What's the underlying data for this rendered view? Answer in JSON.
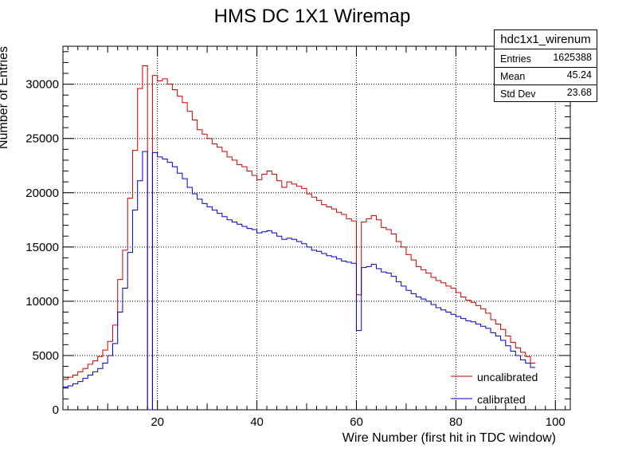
{
  "chart_data": {
    "type": "histogram",
    "title": "HMS DC 1X1 Wiremap",
    "xlabel": "Wire Number (first hit in TDC window)",
    "ylabel": "Number of Entries",
    "xlim": [
      1,
      103
    ],
    "ylim": [
      0,
      33500
    ],
    "xticks": [
      20,
      40,
      60,
      80,
      100
    ],
    "yticks": [
      0,
      5000,
      10000,
      15000,
      20000,
      25000,
      30000
    ],
    "grid": true,
    "legend_position": "bottom-right",
    "stats": {
      "name": "hdc1x1_wirenum",
      "rows": [
        {
          "label": "Entries",
          "value": "1625388"
        },
        {
          "label": "Mean",
          "value": "45.24"
        },
        {
          "label": "Std Dev",
          "value": "23.68"
        }
      ]
    },
    "bin_edges_start": 1,
    "bin_width": 1,
    "series": [
      {
        "name": "uncalibrated",
        "color": "#cc0000",
        "values": [
          2800,
          3000,
          3200,
          3500,
          3800,
          4200,
          4500,
          4900,
          5500,
          6300,
          7800,
          12000,
          14700,
          19500,
          23900,
          29600,
          31700,
          0,
          30800,
          30300,
          30500,
          30000,
          29500,
          28900,
          28300,
          27500,
          26700,
          25800,
          25400,
          25000,
          24500,
          24200,
          23800,
          23300,
          23000,
          22600,
          22400,
          22000,
          21600,
          21200,
          21700,
          22000,
          21700,
          21100,
          20500,
          21000,
          20800,
          20600,
          20400,
          19900,
          19600,
          19300,
          18900,
          18700,
          18500,
          18200,
          18000,
          17600,
          17400,
          10600,
          17300,
          17600,
          17900,
          17500,
          16800,
          16600,
          16200,
          15500,
          15000,
          14300,
          13800,
          13200,
          12900,
          12600,
          12200,
          11900,
          11700,
          11400,
          11200,
          10800,
          10400,
          10100,
          9900,
          9600,
          9300,
          8900,
          8300,
          7900,
          7400,
          6800,
          6200,
          5700,
          5300,
          4900,
          4300
        ]
      },
      {
        "name": "calibrated",
        "color": "#0000cc",
        "values": [
          2100,
          2200,
          2400,
          2600,
          2900,
          3200,
          3500,
          3800,
          4300,
          5000,
          6100,
          9000,
          11200,
          14500,
          18400,
          21100,
          23800,
          0,
          23700,
          23300,
          23100,
          22800,
          22400,
          21800,
          21300,
          20500,
          19900,
          19400,
          19000,
          18700,
          18400,
          18100,
          17800,
          17500,
          17300,
          17100,
          16900,
          16700,
          16600,
          16300,
          16400,
          16500,
          16300,
          16000,
          15700,
          15800,
          15700,
          15500,
          15300,
          15000,
          14700,
          14600,
          14400,
          14200,
          14100,
          13900,
          13700,
          13600,
          13500,
          7300,
          13100,
          13200,
          13400,
          13000,
          12700,
          12600,
          12300,
          11800,
          11400,
          11000,
          10700,
          10400,
          10200,
          10000,
          9700,
          9400,
          9200,
          9000,
          8800,
          8600,
          8400,
          8200,
          8100,
          7900,
          7700,
          7500,
          7100,
          6800,
          6400,
          5900,
          5400,
          5000,
          4600,
          4300,
          3900
        ]
      }
    ]
  }
}
